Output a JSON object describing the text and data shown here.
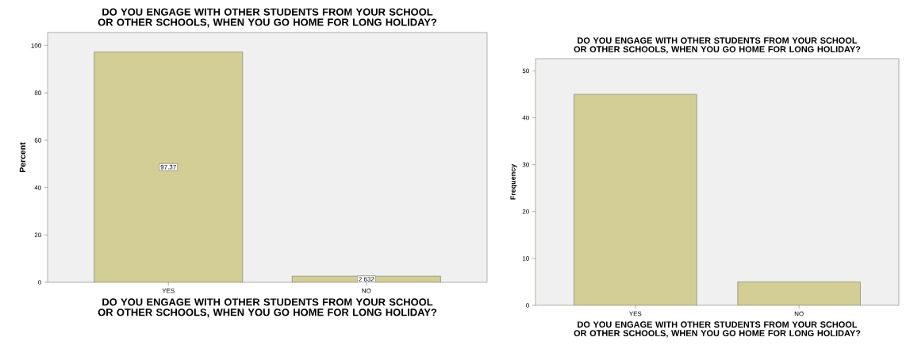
{
  "chart_data": [
    {
      "type": "bar",
      "title": "DO YOU ENGAGE WITH OTHER STUDENTS FROM YOUR SCHOOL OR OTHER SCHOOLS, WHEN YOU GO HOME FOR LONG HOLIDAY?",
      "xlabel": "DO YOU ENGAGE WITH OTHER STUDENTS FROM YOUR SCHOOL OR OTHER SCHOOLS, WHEN YOU GO HOME FOR LONG HOLIDAY?",
      "ylabel": "Percent",
      "categories": [
        "YES",
        "NO"
      ],
      "values": [
        97.37,
        2.632
      ],
      "color": "#d3cd96",
      "data_labels": true,
      "ylim": [
        0,
        105.5
      ],
      "yticks": [
        0,
        20,
        40,
        60,
        80,
        100
      ]
    },
    {
      "type": "bar",
      "title": "DO YOU ENGAGE WITH OTHER STUDENTS FROM YOUR SCHOOL OR OTHER SCHOOLS, WHEN YOU GO HOME FOR LONG HOLIDAY?",
      "xlabel": "DO YOU ENGAGE WITH OTHER STUDENTS FROM YOUR SCHOOL OR OTHER SCHOOLS, WHEN YOU GO HOME FOR LONG HOLIDAY?",
      "ylabel": "Frequency",
      "categories": [
        "YES",
        "NO"
      ],
      "values": [
        45,
        5
      ],
      "color": "#d3cd96",
      "ylim": [
        0,
        52.6
      ],
      "yticks": [
        0,
        10,
        20,
        30,
        40,
        50
      ]
    }
  ]
}
